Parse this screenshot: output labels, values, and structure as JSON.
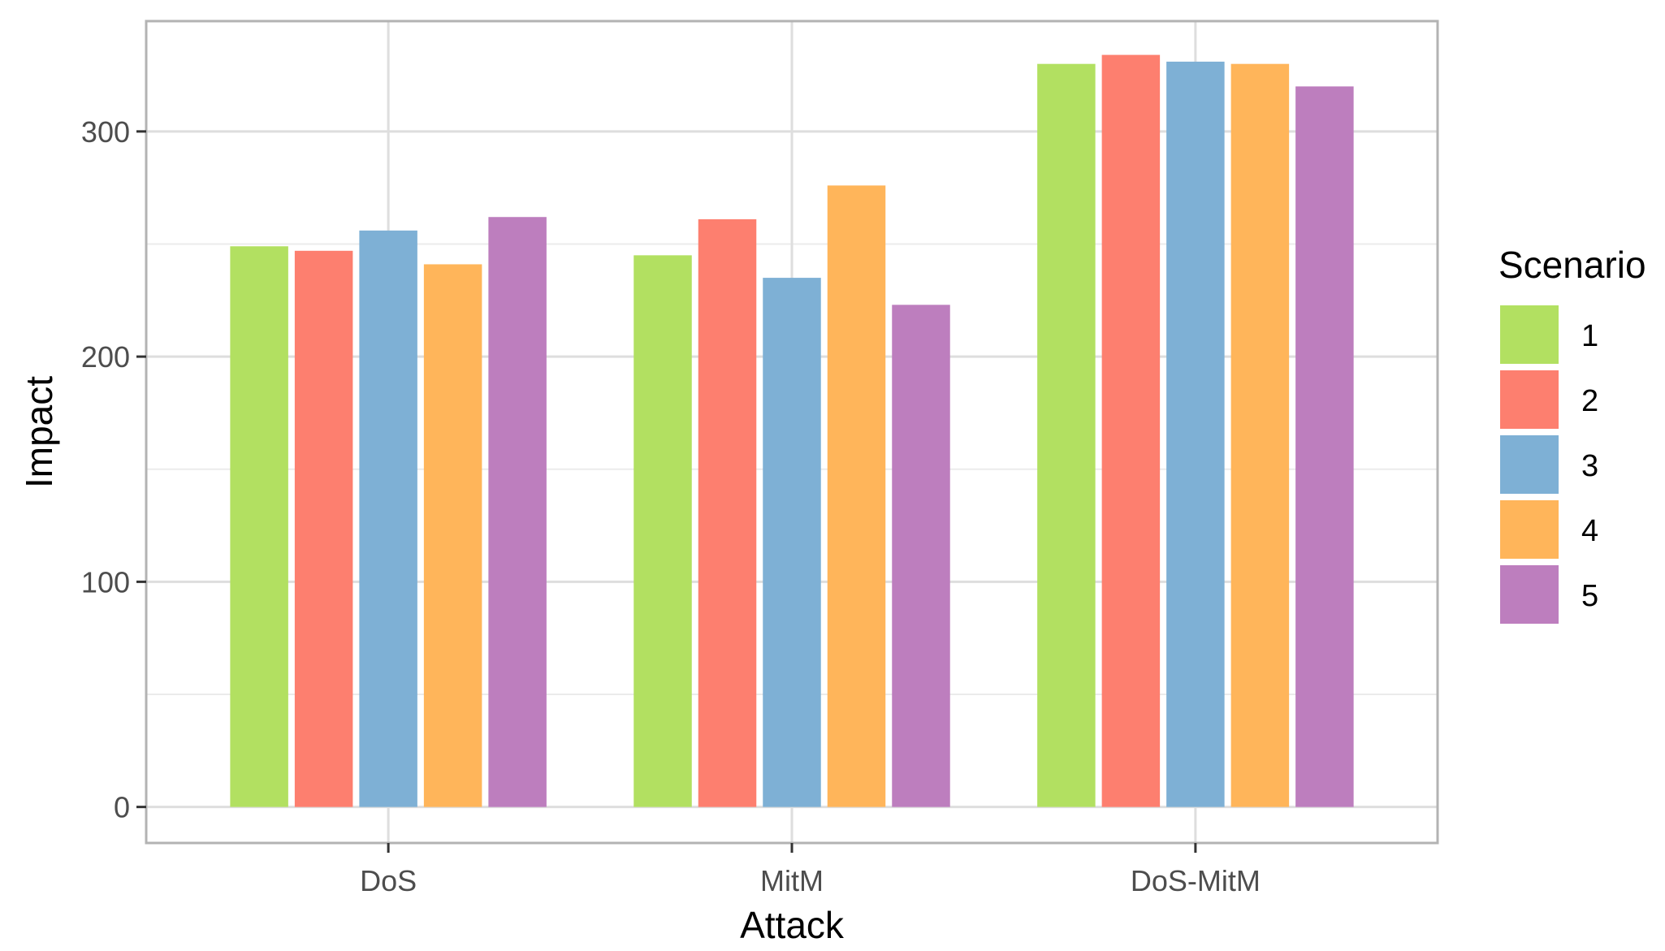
{
  "chart_data": {
    "type": "bar",
    "xlabel": "Attack",
    "ylabel": "Impact",
    "categories": [
      "DoS",
      "MitM",
      "DoS-MitM"
    ],
    "ylim": [
      -16,
      349
    ],
    "yticks": [
      0,
      100,
      200,
      300
    ],
    "grid": true,
    "legend": {
      "title": "Scenario",
      "placement": "right"
    },
    "series": [
      {
        "name": "1",
        "color": "#B2E061",
        "values": [
          249,
          245,
          330
        ]
      },
      {
        "name": "2",
        "color": "#FD7F6F",
        "values": [
          247,
          261,
          334
        ]
      },
      {
        "name": "3",
        "color": "#7EB0D5",
        "values": [
          256,
          235,
          331
        ]
      },
      {
        "name": "4",
        "color": "#FFB55A",
        "values": [
          241,
          276,
          330
        ]
      },
      {
        "name": "5",
        "color": "#BD7EBE",
        "values": [
          262,
          223,
          320
        ]
      }
    ]
  }
}
